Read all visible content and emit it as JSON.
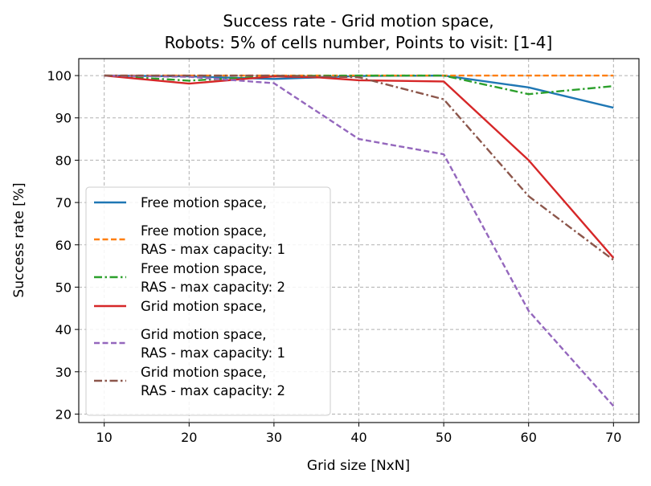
{
  "chart_data": {
    "type": "line",
    "title": [
      "Success rate - Grid motion space,",
      "Robots: 5% of cells number, Points to visit: [1-4]"
    ],
    "xlabel": "Grid size [NxN]",
    "ylabel": "Success rate [%]",
    "x": [
      10,
      20,
      30,
      40,
      50,
      60,
      70
    ],
    "xlim": [
      7,
      73
    ],
    "ylim": [
      18,
      104
    ],
    "xticks": [
      10,
      20,
      30,
      40,
      50,
      60,
      70
    ],
    "yticks": [
      20,
      30,
      40,
      50,
      60,
      70,
      80,
      90,
      100
    ],
    "grid": true,
    "legend_position": "lower-left",
    "series": [
      {
        "name": [
          "Free motion space,"
        ],
        "color": "#1f77b4",
        "style": "solid",
        "x": [
          10,
          20,
          30,
          40,
          50,
          60,
          70
        ],
        "values": [
          100,
          99.8,
          99.2,
          99.9,
          100,
          97.2,
          92.4
        ]
      },
      {
        "name": [
          "Free motion space,",
          "RAS - max capacity: 1"
        ],
        "color": "#ff7f0e",
        "style": "dashed",
        "x": [
          10,
          20,
          30,
          40,
          50,
          60,
          70
        ],
        "values": [
          100,
          100,
          100,
          100,
          100,
          100,
          100
        ]
      },
      {
        "name": [
          "Free motion space,",
          "RAS - max capacity: 2"
        ],
        "color": "#2ca02c",
        "style": "dashdot",
        "x": [
          10,
          20,
          30,
          40,
          50,
          60,
          70
        ],
        "values": [
          100,
          98.8,
          99.9,
          100,
          100,
          95.6,
          97.5
        ]
      },
      {
        "name": [
          "Grid motion space,"
        ],
        "color": "#d62728",
        "style": "solid",
        "x": [
          10,
          20,
          30,
          35,
          40,
          50,
          60,
          70
        ],
        "values": [
          100,
          98.1,
          99.8,
          99.6,
          98.9,
          98.6,
          80,
          56.9
        ]
      },
      {
        "name": [
          "Grid motion space,",
          "RAS - max capacity: 1"
        ],
        "color": "#9467bd",
        "style": "dashed",
        "x": [
          10,
          20,
          30,
          40,
          50,
          60,
          70
        ],
        "values": [
          100,
          99.7,
          98.2,
          85,
          81.4,
          44.4,
          21.9
        ]
      },
      {
        "name": [
          "Grid motion space,",
          "RAS - max capacity: 2"
        ],
        "color": "#8c564b",
        "style": "dashdot",
        "x": [
          10,
          20,
          30,
          40,
          50,
          60,
          70
        ],
        "values": [
          100,
          100,
          100,
          99.6,
          94.4,
          71.5,
          56.4
        ]
      }
    ]
  }
}
